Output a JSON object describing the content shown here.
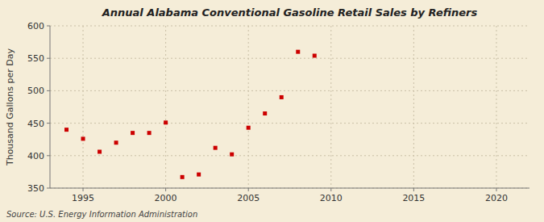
{
  "chart_data": {
    "type": "scatter",
    "title": "Annual Alabama Conventional Gasoline Retail Sales by Refiners",
    "ylabel": "Thousand Gallons per Day",
    "annotation": "Source: U.S. Energy Information Administration",
    "x": [
      1994,
      1995,
      1996,
      1997,
      1998,
      1999,
      2000,
      2001,
      2002,
      2003,
      2004,
      2005,
      2006,
      2007,
      2008,
      2009
    ],
    "values": [
      440,
      426,
      406,
      420,
      435,
      435,
      451,
      367,
      371,
      412,
      402,
      443,
      465,
      490,
      560,
      554
    ],
    "color": "#cc0000",
    "marker": "square",
    "xlim": [
      1993,
      2022
    ],
    "ylim": [
      350,
      600
    ],
    "xticks": [
      1995,
      2000,
      2005,
      2010,
      2015,
      2020
    ],
    "yticks": [
      350,
      400,
      450,
      500,
      550,
      600
    ],
    "grid": true
  }
}
